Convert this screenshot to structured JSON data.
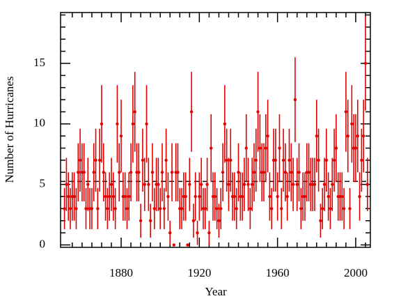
{
  "chart_data": {
    "type": "errorbar",
    "x_label": "Year",
    "y_label": "Number of Hurricanes",
    "color": "#e00000",
    "x": [
      1851,
      1852,
      1853,
      1854,
      1855,
      1856,
      1857,
      1858,
      1859,
      1860,
      1861,
      1862,
      1863,
      1864,
      1865,
      1866,
      1867,
      1868,
      1869,
      1870,
      1871,
      1872,
      1873,
      1874,
      1875,
      1876,
      1877,
      1878,
      1879,
      1880,
      1881,
      1882,
      1883,
      1884,
      1885,
      1886,
      1887,
      1888,
      1889,
      1890,
      1891,
      1892,
      1893,
      1894,
      1895,
      1896,
      1897,
      1898,
      1899,
      1900,
      1901,
      1902,
      1903,
      1904,
      1905,
      1906,
      1907,
      1908,
      1909,
      1910,
      1911,
      1912,
      1913,
      1914,
      1915,
      1916,
      1917,
      1918,
      1919,
      1920,
      1921,
      1922,
      1923,
      1924,
      1925,
      1926,
      1927,
      1928,
      1929,
      1930,
      1931,
      1932,
      1933,
      1934,
      1935,
      1936,
      1937,
      1938,
      1939,
      1940,
      1941,
      1942,
      1943,
      1944,
      1945,
      1946,
      1947,
      1948,
      1949,
      1950,
      1951,
      1952,
      1953,
      1954,
      1955,
      1956,
      1957,
      1958,
      1959,
      1960,
      1961,
      1962,
      1963,
      1964,
      1965,
      1966,
      1967,
      1968,
      1969,
      1970,
      1971,
      1972,
      1973,
      1974,
      1975,
      1976,
      1977,
      1978,
      1979,
      1980,
      1981,
      1982,
      1983,
      1984,
      1985,
      1986,
      1987,
      1988,
      1989,
      1990,
      1991,
      1992,
      1993,
      1994,
      1995,
      1996,
      1997,
      1998,
      1999,
      2000,
      2001,
      2002,
      2003,
      2004,
      2005,
      2006
    ],
    "values": [
      3,
      5,
      4,
      3,
      4,
      4,
      3,
      6,
      7,
      6,
      6,
      3,
      5,
      3,
      3,
      6,
      7,
      3,
      7,
      10,
      6,
      4,
      3,
      4,
      5,
      4,
      3,
      10,
      6,
      9,
      4,
      4,
      3,
      4,
      6,
      10,
      11,
      6,
      6,
      2,
      7,
      5,
      10,
      5,
      2,
      6,
      3,
      5,
      5,
      3,
      6,
      3,
      7,
      4,
      1,
      6,
      0,
      6,
      6,
      3,
      3,
      4,
      4,
      0,
      5,
      11,
      2,
      4,
      1,
      4,
      5,
      3,
      3,
      5,
      1,
      8,
      4,
      4,
      3,
      2,
      3,
      6,
      10,
      7,
      5,
      7,
      4,
      4,
      3,
      6,
      4,
      4,
      5,
      8,
      5,
      3,
      5,
      6,
      7,
      11,
      8,
      6,
      6,
      8,
      9,
      4,
      3,
      7,
      7,
      4,
      8,
      3,
      7,
      6,
      4,
      7,
      6,
      5,
      12,
      5,
      6,
      3,
      4,
      4,
      6,
      6,
      5,
      5,
      5,
      9,
      7,
      2,
      3,
      5,
      7,
      4,
      3,
      5,
      7,
      8,
      4,
      4,
      4,
      3,
      11,
      9,
      3,
      10,
      8,
      8,
      9,
      4,
      7,
      9,
      15,
      5
    ],
    "errors": [
      1.7,
      2.2,
      2,
      1.7,
      2,
      2,
      1.7,
      2.4,
      2.6,
      2.4,
      2.4,
      1.7,
      2.2,
      1.7,
      1.7,
      2.4,
      2.6,
      1.7,
      2.6,
      3.2,
      2.4,
      2,
      1.7,
      2,
      2.2,
      2,
      1.7,
      3.2,
      2.4,
      3,
      2,
      2,
      1.7,
      2,
      2.4,
      3.2,
      3.3,
      2.4,
      2.4,
      1.4,
      2.6,
      2.2,
      3.2,
      2.2,
      1.4,
      2.4,
      1.7,
      2.2,
      2.2,
      1.7,
      2.4,
      1.7,
      2.6,
      2,
      1,
      2.4,
      0,
      2.4,
      2.4,
      1.7,
      1.7,
      2,
      2,
      0,
      2.2,
      3.3,
      1.4,
      2,
      1,
      2,
      2.2,
      1.7,
      1.7,
      2.2,
      1,
      2.8,
      2,
      2,
      1.7,
      1.4,
      1.7,
      2.4,
      3.2,
      2.6,
      2.2,
      2.6,
      2,
      2,
      1.7,
      2.4,
      2,
      2,
      2.2,
      2.8,
      2.2,
      1.7,
      2.2,
      2.4,
      2.6,
      3.3,
      2.8,
      2.4,
      2.4,
      2.8,
      3,
      2,
      1.7,
      2.6,
      2.6,
      2,
      2.8,
      1.7,
      2.6,
      2.4,
      2,
      2.6,
      2.4,
      2.2,
      3.5,
      2.2,
      2.4,
      1.7,
      2,
      2,
      2.4,
      2.4,
      2.2,
      2.2,
      2.2,
      3,
      2.6,
      1.4,
      1.7,
      2.2,
      2.6,
      2,
      1.7,
      2.2,
      2.6,
      2.8,
      2,
      2,
      2,
      1.7,
      3.3,
      3,
      1.7,
      3.2,
      2.8,
      2.8,
      3,
      2,
      2.6,
      3,
      3.9,
      2.2
    ],
    "mean": 5.25,
    "xlim": [
      1849,
      2007.5
    ],
    "ylim": [
      -0.2,
      19.2
    ],
    "xticks": [
      1880,
      1920,
      1960,
      2000
    ],
    "xminorticks": [
      1855,
      1860,
      1865,
      1870,
      1875,
      1885,
      1890,
      1895,
      1900,
      1905,
      1910,
      1915,
      1925,
      1930,
      1935,
      1940,
      1945,
      1950,
      1955,
      1965,
      1970,
      1975,
      1980,
      1985,
      1990,
      1995,
      2005
    ],
    "yticks": [
      0,
      5,
      10,
      15
    ],
    "yminorticks": [
      1,
      2,
      3,
      4,
      6,
      7,
      8,
      9,
      11,
      12,
      13,
      14,
      16,
      17,
      18,
      19
    ]
  }
}
